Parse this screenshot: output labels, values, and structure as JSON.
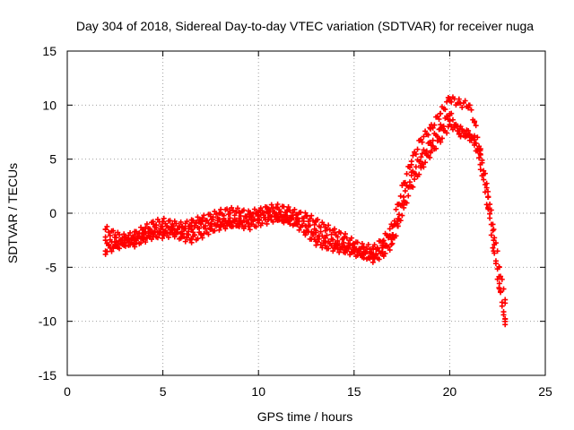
{
  "chart_data": {
    "type": "scatter",
    "title": "Day 304 of 2018, Sidereal Day-to-day VTEC variation (SDTVAR) for receiver nuga",
    "xlabel": "GPS time / hours",
    "ylabel": "SDTVAR / TECUs",
    "xlim": [
      0,
      25
    ],
    "ylim": [
      -15,
      15
    ],
    "x_ticks": [
      0,
      5,
      10,
      15,
      20,
      25
    ],
    "y_ticks": [
      -15,
      -10,
      -5,
      0,
      5,
      10,
      15
    ],
    "grid": true,
    "marker": "+",
    "series": [
      {
        "name": "trace-a",
        "color": "#ff0000",
        "x": [
          2.0,
          2.5,
          3.0,
          3.5,
          4.0,
          4.5,
          5.0,
          5.5,
          6.0,
          6.5,
          7.0,
          7.5,
          8.0,
          8.5,
          9.0,
          9.5,
          10.0,
          10.5,
          11.0,
          11.5,
          12.0,
          12.5,
          13.0,
          13.5,
          14.0,
          14.5,
          15.0,
          15.5,
          16.0,
          16.5,
          17.0,
          17.3,
          17.6,
          18.0,
          18.5,
          19.0,
          19.5,
          20.0,
          20.5,
          21.0,
          21.3,
          21.6,
          22.0,
          22.3,
          22.6,
          22.9
        ],
        "y": [
          -1.5,
          -2.0,
          -2.3,
          -2.0,
          -1.5,
          -1.0,
          -0.8,
          -1.0,
          -1.2,
          -0.9,
          -0.6,
          -0.3,
          0.0,
          0.2,
          0.1,
          -0.1,
          0.1,
          0.4,
          0.5,
          0.3,
          -0.1,
          -0.3,
          -0.8,
          -1.3,
          -1.8,
          -2.2,
          -2.8,
          -3.2,
          -3.3,
          -2.6,
          -1.2,
          0.8,
          2.8,
          4.8,
          6.8,
          7.8,
          9.2,
          10.6,
          10.2,
          10.0,
          8.5,
          5.5,
          1.5,
          -2.5,
          -6.5,
          -10.3
        ]
      },
      {
        "name": "trace-b",
        "color": "#ff0000",
        "x": [
          2.0,
          2.5,
          3.0,
          3.5,
          4.0,
          4.5,
          5.0,
          5.5,
          6.0,
          6.5,
          7.0,
          7.5,
          8.0,
          8.5,
          9.0,
          9.5,
          10.0,
          10.5,
          11.0,
          11.5,
          12.0,
          12.5,
          13.0,
          13.5,
          14.0,
          14.5,
          15.0,
          15.5,
          16.0,
          16.5,
          17.0,
          17.3,
          17.6,
          18.0,
          18.5,
          19.0,
          19.5,
          20.0,
          20.5,
          21.0,
          21.3,
          21.6,
          22.0,
          22.3,
          22.6,
          22.9
        ],
        "y": [
          -2.5,
          -3.0,
          -2.8,
          -2.5,
          -2.0,
          -1.8,
          -1.5,
          -1.5,
          -1.7,
          -1.5,
          -1.0,
          -1.0,
          -0.8,
          -0.8,
          -1.0,
          -1.2,
          -0.9,
          -0.6,
          -0.4,
          -0.6,
          -0.8,
          -1.2,
          -1.8,
          -2.3,
          -2.8,
          -3.1,
          -3.4,
          -3.8,
          -4.0,
          -3.2,
          -2.0,
          -0.5,
          1.5,
          3.5,
          5.2,
          6.5,
          7.8,
          9.2,
          7.4,
          7.3,
          6.8,
          5.8,
          2.0,
          -1.5,
          -5.0,
          -8.0
        ]
      },
      {
        "name": "trace-c",
        "color": "#ff0000",
        "x": [
          2.0,
          2.5,
          3.0,
          3.5,
          4.0,
          4.5,
          5.0,
          5.5,
          6.0,
          6.5,
          7.0,
          7.5,
          8.0,
          8.5,
          9.0,
          9.5,
          10.0,
          10.5,
          11.0,
          11.5,
          12.0,
          12.5,
          13.0,
          13.5,
          14.0,
          14.5,
          15.0,
          15.5,
          16.0,
          16.5,
          17.0,
          17.3,
          17.6,
          18.0,
          18.5,
          19.0,
          19.5,
          20.0,
          20.5,
          21.0,
          21.3,
          21.6,
          22.0,
          22.3,
          22.6,
          22.9
        ],
        "y": [
          -3.5,
          -3.0,
          -2.5,
          -2.8,
          -2.4,
          -2.0,
          -2.0,
          -1.8,
          -2.2,
          -2.4,
          -2.0,
          -1.5,
          -1.2,
          -1.0,
          -0.8,
          -0.6,
          -0.2,
          0.0,
          -0.3,
          -0.5,
          -1.0,
          -1.8,
          -2.6,
          -3.0,
          -3.2,
          -3.4,
          -3.6,
          -3.8,
          -4.2,
          -3.8,
          -2.8,
          -1.2,
          0.5,
          2.5,
          4.2,
          5.6,
          6.8,
          8.2,
          7.8,
          7.2,
          6.5,
          4.5,
          0.5,
          -3.5,
          -7.0,
          -9.8
        ]
      }
    ]
  }
}
